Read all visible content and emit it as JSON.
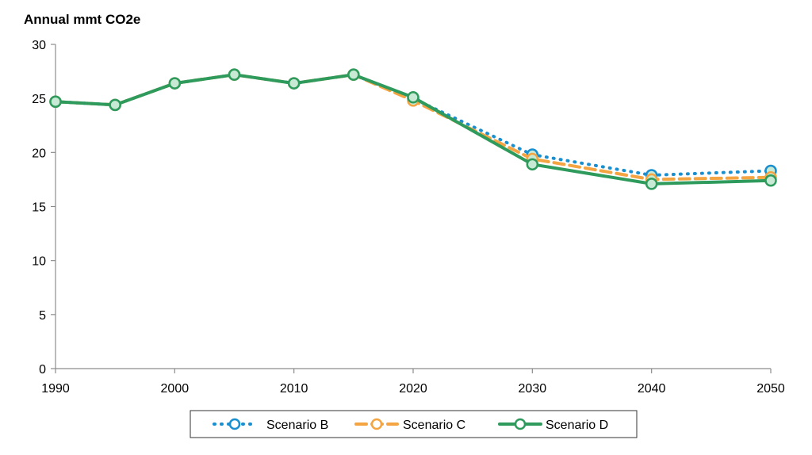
{
  "chart_data": {
    "type": "line",
    "ylabel": "Annual mmt CO2e",
    "xlabel": "",
    "x_ticks": [
      "1990",
      "2000",
      "2010",
      "2020",
      "2030",
      "2040",
      "2050"
    ],
    "y_ticks": [
      "0",
      "5",
      "10",
      "15",
      "20",
      "25",
      "30"
    ],
    "xlim": [
      1990,
      2050
    ],
    "ylim": [
      0,
      30
    ],
    "grid": false,
    "legend_position": "bottom",
    "series": [
      {
        "name": "Scenario B",
        "color": "#1a8fd0",
        "style": "dotted",
        "x": [
          1990,
          1995,
          2000,
          2005,
          2010,
          2015,
          2020,
          2030,
          2040,
          2050
        ],
        "values": [
          24.7,
          24.4,
          26.4,
          27.2,
          26.4,
          27.2,
          25.0,
          19.8,
          17.9,
          18.3
        ]
      },
      {
        "name": "Scenario C",
        "color": "#f5a442",
        "style": "dashed",
        "x": [
          1990,
          1995,
          2000,
          2005,
          2010,
          2015,
          2020,
          2030,
          2040,
          2050
        ],
        "values": [
          24.7,
          24.4,
          26.4,
          27.2,
          26.4,
          27.2,
          24.8,
          19.4,
          17.5,
          17.7
        ]
      },
      {
        "name": "Scenario D",
        "color": "#2e9b5c",
        "style": "solid",
        "x": [
          1990,
          1995,
          2000,
          2005,
          2010,
          2015,
          2020,
          2030,
          2040,
          2050
        ],
        "values": [
          24.7,
          24.4,
          26.4,
          27.2,
          26.4,
          27.2,
          25.1,
          18.9,
          17.1,
          17.4
        ]
      }
    ]
  }
}
